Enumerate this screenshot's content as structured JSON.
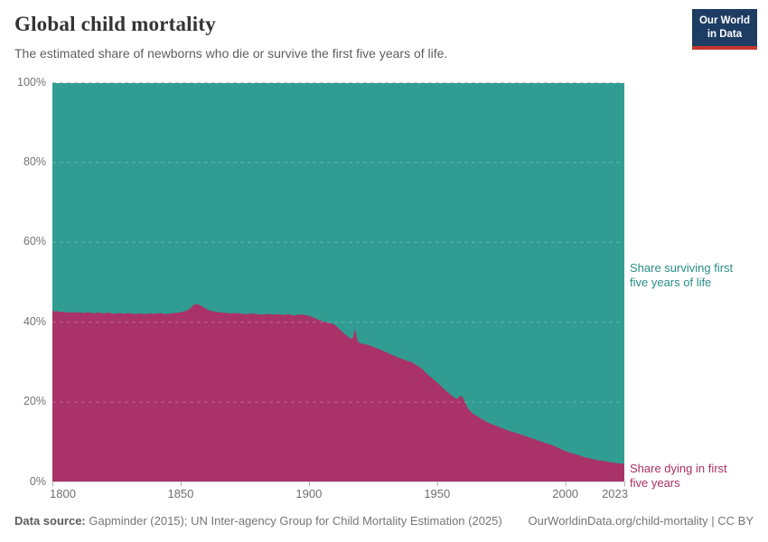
{
  "header": {
    "title": "Global child mortality",
    "subtitle": "The estimated share of newborns who die or survive the first five years of life."
  },
  "logo": {
    "line1": "Our World",
    "line2": "in Data",
    "bg": "#1d3d63",
    "stripe": "#c4362b"
  },
  "footer": {
    "source_label": "Data source:",
    "source_text": " Gapminder (2015); UN Inter-agency Group for Child Mortality Estimation (2025)",
    "link_text": "OurWorldinData.org/child-mortality | CC BY"
  },
  "chart_data": {
    "type": "area",
    "stacked": true,
    "title": "Global child mortality",
    "xlabel": "",
    "ylabel": "",
    "x_range": [
      1800,
      2023
    ],
    "y_range": [
      0,
      100
    ],
    "grid": "dashed-horizontal",
    "legend_position": "right-annotations",
    "y_ticks": [
      {
        "v": 0,
        "label": "0%"
      },
      {
        "v": 20,
        "label": "20%"
      },
      {
        "v": 40,
        "label": "40%"
      },
      {
        "v": 60,
        "label": "60%"
      },
      {
        "v": 80,
        "label": "80%"
      },
      {
        "v": 100,
        "label": "100%"
      }
    ],
    "x_ticks": [
      {
        "v": 1800,
        "label": "1800"
      },
      {
        "v": 1850,
        "label": "1850"
      },
      {
        "v": 1900,
        "label": "1900"
      },
      {
        "v": 1950,
        "label": "1950"
      },
      {
        "v": 2000,
        "label": "2000"
      },
      {
        "v": 2023,
        "label": "2023"
      }
    ],
    "colors": {
      "surviving": "#319d92",
      "dying": "#a93368",
      "surviving_text": "#2a8d85",
      "dying_text": "#ab2f63"
    },
    "annotations": {
      "surviving": [
        "Share surviving first",
        "five years of life"
      ],
      "dying": [
        "Share dying in first",
        "five years"
      ]
    },
    "series": [
      {
        "name": "Share surviving first five years of life",
        "rule": "complement: 100 minus dying share"
      },
      {
        "name": "Share dying in first five years",
        "points": [
          [
            1800,
            42.8
          ],
          [
            1801,
            42.5
          ],
          [
            1802,
            42.7
          ],
          [
            1803,
            42.4
          ],
          [
            1804,
            42.6
          ],
          [
            1805,
            42.3
          ],
          [
            1806,
            42.5
          ],
          [
            1807,
            42.2
          ],
          [
            1808,
            42.5
          ],
          [
            1809,
            42.3
          ],
          [
            1810,
            42.4
          ],
          [
            1812,
            42.2
          ],
          [
            1814,
            42.4
          ],
          [
            1816,
            42.1
          ],
          [
            1818,
            42.3
          ],
          [
            1820,
            42.1
          ],
          [
            1822,
            42.3
          ],
          [
            1824,
            42.0
          ],
          [
            1826,
            42.2
          ],
          [
            1828,
            42.0
          ],
          [
            1830,
            42.2
          ],
          [
            1832,
            41.9
          ],
          [
            1834,
            42.1
          ],
          [
            1836,
            41.9
          ],
          [
            1838,
            42.1
          ],
          [
            1840,
            42.0
          ],
          [
            1842,
            42.2
          ],
          [
            1844,
            41.9
          ],
          [
            1846,
            42.1
          ],
          [
            1848,
            42.2
          ],
          [
            1850,
            42.4
          ],
          [
            1852,
            42.7
          ],
          [
            1853,
            43.0
          ],
          [
            1854,
            43.5
          ],
          [
            1855,
            44.2
          ],
          [
            1856,
            44.4
          ],
          [
            1857,
            44.3
          ],
          [
            1858,
            44.0
          ],
          [
            1859,
            43.6
          ],
          [
            1860,
            43.2
          ],
          [
            1861,
            42.9
          ],
          [
            1862,
            42.7
          ],
          [
            1864,
            42.5
          ],
          [
            1866,
            42.3
          ],
          [
            1868,
            42.2
          ],
          [
            1870,
            42.1
          ],
          [
            1872,
            42.2
          ],
          [
            1874,
            42.0
          ],
          [
            1876,
            41.9
          ],
          [
            1878,
            42.1
          ],
          [
            1880,
            41.9
          ],
          [
            1882,
            41.8
          ],
          [
            1884,
            42.0
          ],
          [
            1886,
            41.8
          ],
          [
            1888,
            41.9
          ],
          [
            1890,
            41.7
          ],
          [
            1892,
            41.9
          ],
          [
            1894,
            41.6
          ],
          [
            1896,
            41.8
          ],
          [
            1898,
            41.8
          ],
          [
            1900,
            41.5
          ],
          [
            1902,
            41.0
          ],
          [
            1904,
            40.4
          ],
          [
            1906,
            40.0
          ],
          [
            1908,
            39.7
          ],
          [
            1910,
            39.3
          ],
          [
            1912,
            38.1
          ],
          [
            1914,
            36.9
          ],
          [
            1916,
            35.9
          ],
          [
            1917,
            35.7
          ],
          [
            1918,
            38.2
          ],
          [
            1919,
            35.2
          ],
          [
            1920,
            34.6
          ],
          [
            1922,
            34.4
          ],
          [
            1924,
            34.0
          ],
          [
            1926,
            33.5
          ],
          [
            1928,
            33.0
          ],
          [
            1930,
            32.4
          ],
          [
            1932,
            31.8
          ],
          [
            1934,
            31.3
          ],
          [
            1936,
            30.8
          ],
          [
            1938,
            30.3
          ],
          [
            1940,
            29.9
          ],
          [
            1942,
            29.1
          ],
          [
            1944,
            28.3
          ],
          [
            1946,
            27.0
          ],
          [
            1948,
            25.9
          ],
          [
            1950,
            24.8
          ],
          [
            1952,
            23.6
          ],
          [
            1954,
            22.4
          ],
          [
            1956,
            21.4
          ],
          [
            1957,
            20.9
          ],
          [
            1958,
            20.7
          ],
          [
            1959,
            21.5
          ],
          [
            1960,
            21.1
          ],
          [
            1961,
            19.7
          ],
          [
            1962,
            18.4
          ],
          [
            1963,
            17.6
          ],
          [
            1964,
            17.0
          ],
          [
            1966,
            16.2
          ],
          [
            1968,
            15.4
          ],
          [
            1970,
            14.7
          ],
          [
            1972,
            14.2
          ],
          [
            1974,
            13.7
          ],
          [
            1976,
            13.2
          ],
          [
            1978,
            12.7
          ],
          [
            1980,
            12.3
          ],
          [
            1982,
            11.9
          ],
          [
            1984,
            11.5
          ],
          [
            1986,
            11.0
          ],
          [
            1988,
            10.6
          ],
          [
            1990,
            10.1
          ],
          [
            1992,
            9.7
          ],
          [
            1994,
            9.3
          ],
          [
            1996,
            8.8
          ],
          [
            1998,
            8.2
          ],
          [
            2000,
            7.6
          ],
          [
            2002,
            7.2
          ],
          [
            2004,
            6.8
          ],
          [
            2006,
            6.4
          ],
          [
            2008,
            6.0
          ],
          [
            2010,
            5.7
          ],
          [
            2012,
            5.4
          ],
          [
            2014,
            5.2
          ],
          [
            2016,
            5.0
          ],
          [
            2018,
            4.8
          ],
          [
            2020,
            4.6
          ],
          [
            2022,
            4.5
          ],
          [
            2023,
            4.4
          ]
        ]
      }
    ]
  }
}
